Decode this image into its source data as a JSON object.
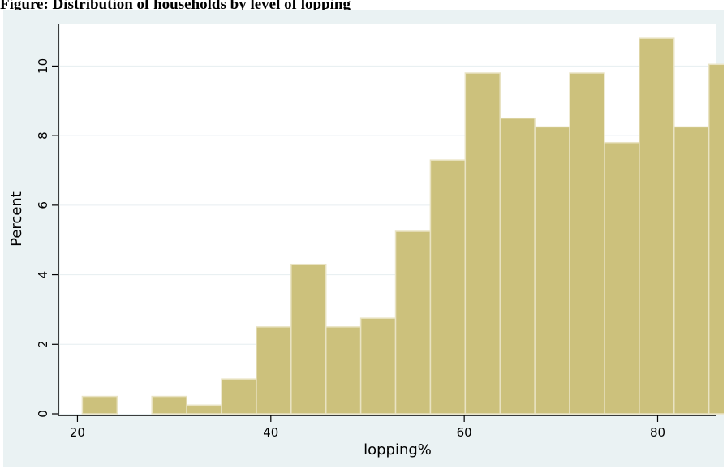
{
  "title_fragment": "Figure: Distribution of households by level of lopping",
  "chart_data": {
    "type": "bar",
    "bin_width": 3.6,
    "bins": [
      {
        "start": 20.5,
        "value": 0.5
      },
      {
        "start": 24.1,
        "value": 0
      },
      {
        "start": 27.7,
        "value": 0.5
      },
      {
        "start": 31.3,
        "value": 0.25
      },
      {
        "start": 34.9,
        "value": 1.0
      },
      {
        "start": 38.5,
        "value": 2.5
      },
      {
        "start": 42.1,
        "value": 4.3
      },
      {
        "start": 45.7,
        "value": 2.5
      },
      {
        "start": 49.3,
        "value": 2.75
      },
      {
        "start": 52.9,
        "value": 5.25
      },
      {
        "start": 56.5,
        "value": 7.3
      },
      {
        "start": 60.1,
        "value": 9.8
      },
      {
        "start": 63.7,
        "value": 8.5
      },
      {
        "start": 67.3,
        "value": 8.25
      },
      {
        "start": 70.9,
        "value": 9.8
      },
      {
        "start": 74.5,
        "value": 7.8
      },
      {
        "start": 78.1,
        "value": 10.8
      },
      {
        "start": 81.7,
        "value": 8.25
      },
      {
        "start": 85.3,
        "value": 10.05
      }
    ],
    "xlabel": "lopping%",
    "ylabel": "Percent",
    "xlim": [
      18.2,
      86.0
    ],
    "ylim": [
      0,
      11.2
    ],
    "xticks": [
      "20",
      "40",
      "60",
      "80"
    ],
    "xtick_values": [
      20,
      40,
      60,
      80
    ],
    "yticks": [
      "0",
      "2",
      "4",
      "6",
      "8",
      "10"
    ],
    "ytick_values": [
      0,
      2,
      4,
      6,
      8,
      10
    ],
    "grid": true,
    "colors": {
      "bar_fill": "#ccc17c",
      "bar_edge": "#e9e3c3",
      "plot_bg": "#ffffff",
      "frame_bg": "#eaf2f3",
      "grid": "#e6eef0"
    }
  }
}
